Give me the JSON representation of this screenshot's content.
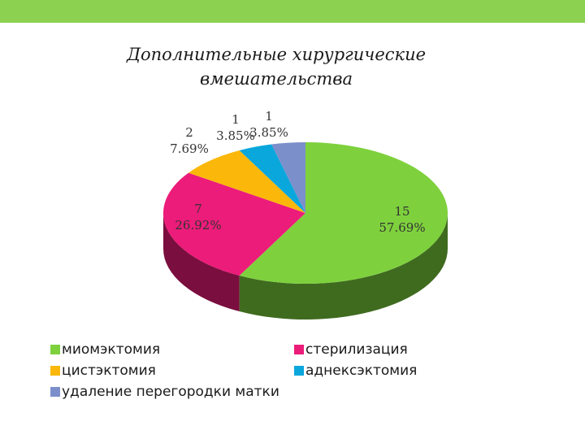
{
  "chart_data": {
    "type": "pie",
    "title": [
      "Дополнительные хирургические",
      "вмешательства"
    ],
    "slices": [
      {
        "label": "миомэктомия",
        "value": 15,
        "percent": "57.69%",
        "color": "#7ed13d",
        "side": "#3f6b1f"
      },
      {
        "label": "стерилизация",
        "value": 7,
        "percent": "26.92%",
        "color": "#ec1c7a",
        "side": "#7a0e3e"
      },
      {
        "label": "цистэктомия",
        "value": 2,
        "percent": "7.69%",
        "color": "#fbb80b",
        "side": "#8a6508"
      },
      {
        "label": "аднексэктомия",
        "value": 1,
        "percent": "3.85%",
        "color": "#0aa7dc",
        "side": "#055b78"
      },
      {
        "label": "удаление перегородки матки",
        "value": 1,
        "percent": "3.85%",
        "color": "#7b8fcb",
        "side": "#3e4a70"
      }
    ],
    "legend_position": "bottom"
  }
}
